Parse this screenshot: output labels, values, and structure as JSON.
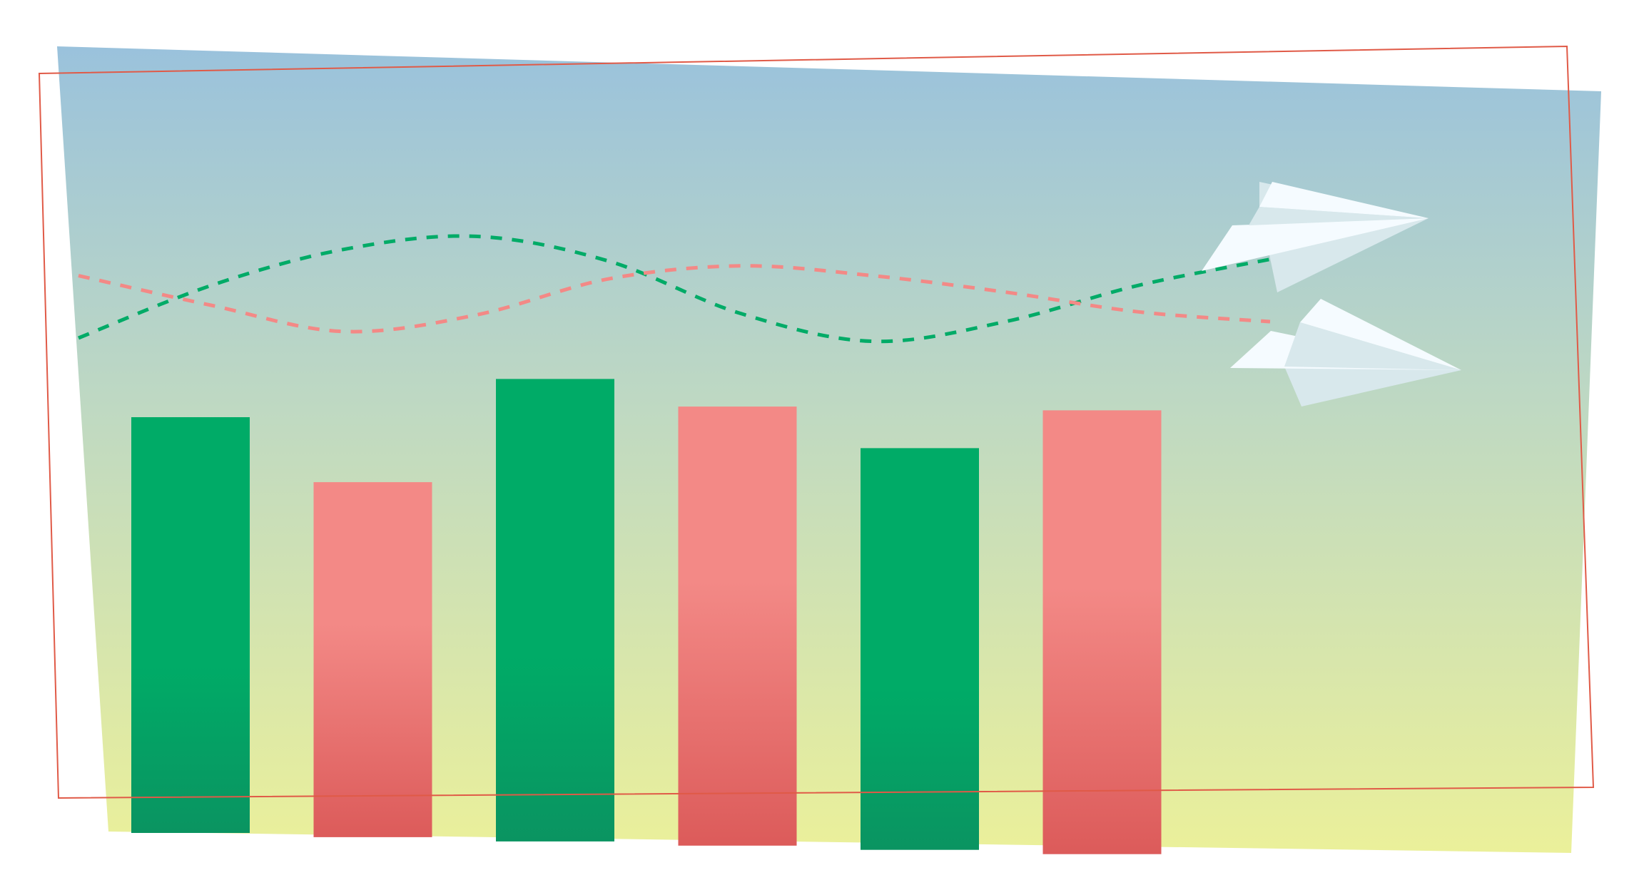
{
  "colors": {
    "background": "#ffffff",
    "sky_top": "#9ac2dc",
    "sky_mid": "#bfd9c2",
    "sky_bottom": "#ebf09a",
    "frame_stroke": "#e05a47",
    "green_top": "#00ab67",
    "green_bottom": "#0a9461",
    "red_top": "#f38986",
    "red_bottom": "#dc5b5a",
    "plane_light": "#f5fbff",
    "plane_shade": "#d8e8ec"
  },
  "icons": {
    "plane_upper": "paper-plane-icon",
    "plane_lower": "paper-plane-icon"
  },
  "chart_data": {
    "type": "bar",
    "title": "",
    "xlabel": "",
    "ylabel": "",
    "ylim": [
      0,
      100
    ],
    "grid": false,
    "legend": "none",
    "categories": [
      "",
      "",
      "",
      "",
      "",
      ""
    ],
    "values": [
      89,
      76,
      99,
      94,
      86,
      95
    ],
    "bar_colors": [
      "green",
      "red",
      "green",
      "red",
      "green",
      "red"
    ],
    "trend_lines": [
      {
        "color": "green",
        "style": "dashed",
        "values": [
          20,
          52,
          74,
          82,
          67,
          35,
          18,
          30,
          52,
          68
        ]
      },
      {
        "color": "red",
        "style": "dashed",
        "values": [
          58,
          40,
          24,
          34,
          56,
          64,
          58,
          48,
          36,
          30
        ]
      }
    ]
  }
}
